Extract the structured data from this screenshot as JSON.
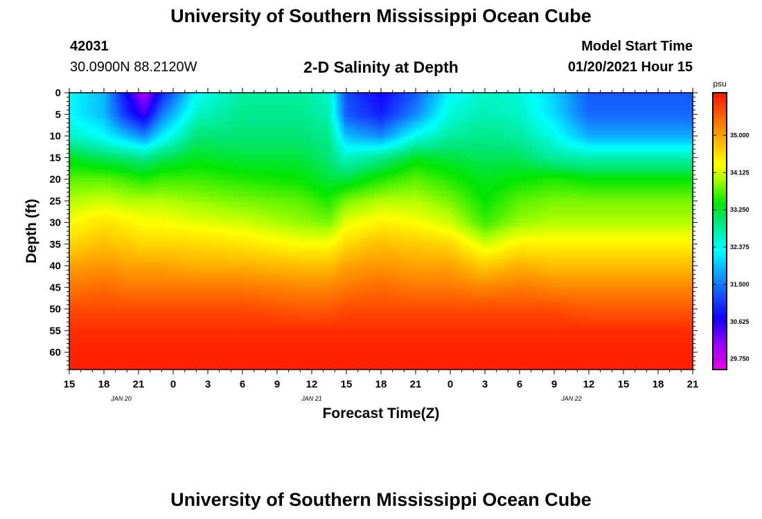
{
  "page": {
    "title_top": "University of Southern Mississippi Ocean Cube",
    "title_bottom": "University of Southern Mississippi Ocean Cube",
    "station_id": "42031",
    "station_coords": "30.0900N 88.2120W",
    "subtitle": "2-D Salinity at Depth",
    "model_label": "Model Start Time",
    "model_time": "01/20/2021 Hour 15"
  },
  "chart_data": {
    "type": "heatmap",
    "title": "2-D Salinity at Depth",
    "xlabel": "Forecast Time(Z)",
    "ylabel": "Depth (ft)",
    "x_hours": [
      0,
      3,
      6,
      9,
      12,
      15,
      18,
      21,
      24,
      27,
      30,
      33,
      36,
      39,
      42,
      45,
      48,
      51,
      54
    ],
    "x_tick_labels": [
      "15",
      "18",
      "21",
      "0",
      "3",
      "6",
      "9",
      "12",
      "15",
      "18",
      "21",
      "0",
      "3",
      "6",
      "9",
      "12",
      "15",
      "18",
      "21"
    ],
    "date_labels": [
      {
        "label": "JAN 20",
        "hour": 4.5
      },
      {
        "label": "JAN 21",
        "hour": 21
      },
      {
        "label": "JAN 22",
        "hour": 43.5
      }
    ],
    "xlim": [
      0,
      54
    ],
    "ylim": [
      0,
      64
    ],
    "y_ticks": [
      0,
      5,
      10,
      15,
      20,
      25,
      30,
      35,
      40,
      45,
      50,
      55,
      60
    ],
    "colorbar": {
      "unit": "psu",
      "min": 29.5,
      "max": 36.0,
      "tick_values": [
        29.75,
        30.625,
        31.5,
        32.375,
        33.25,
        34.125,
        35.0
      ],
      "tick_labels": [
        "29.750",
        "30.625",
        "31.500",
        "32.375",
        "33.250",
        "34.125",
        "35.000"
      ]
    },
    "depths_ft": [
      0,
      5,
      10,
      15,
      20,
      25,
      30,
      35,
      40,
      45,
      50,
      55,
      60,
      64
    ],
    "columns": [
      {
        "hour": 0,
        "salinity": [
          32.3,
          32.3,
          32.6,
          33.3,
          33.7,
          34.0,
          34.3,
          34.6,
          35.0,
          35.3,
          35.6,
          35.8,
          35.9,
          35.9
        ]
      },
      {
        "hour": 3,
        "salinity": [
          31.9,
          31.9,
          32.3,
          33.1,
          33.7,
          34.1,
          34.5,
          34.8,
          35.1,
          35.4,
          35.6,
          35.8,
          35.9,
          35.9
        ]
      },
      {
        "hour": 5,
        "salinity": [
          30.7,
          31.0,
          31.9,
          33.0,
          33.6,
          34.0,
          34.4,
          34.7,
          35.0,
          35.3,
          35.6,
          35.8,
          35.9,
          35.9
        ]
      },
      {
        "hour": 6.5,
        "salinity": [
          29.9,
          30.5,
          31.6,
          32.9,
          33.5,
          34.0,
          34.3,
          34.6,
          35.0,
          35.3,
          35.6,
          35.8,
          35.9,
          35.9
        ]
      },
      {
        "hour": 8,
        "salinity": [
          30.9,
          31.5,
          32.2,
          33.1,
          33.6,
          34.0,
          34.3,
          34.6,
          35.0,
          35.3,
          35.6,
          35.8,
          35.9,
          35.9
        ]
      },
      {
        "hour": 11,
        "salinity": [
          32.3,
          32.6,
          33.0,
          33.3,
          33.6,
          33.9,
          34.2,
          34.6,
          34.9,
          35.3,
          35.6,
          35.8,
          35.9,
          35.9
        ]
      },
      {
        "hour": 15,
        "salinity": [
          32.8,
          32.9,
          33.0,
          33.2,
          33.5,
          33.8,
          34.1,
          34.5,
          34.9,
          35.3,
          35.6,
          35.8,
          35.9,
          35.9
        ]
      },
      {
        "hour": 20,
        "salinity": [
          32.8,
          32.9,
          33.0,
          33.2,
          33.4,
          33.7,
          33.9,
          34.3,
          34.8,
          35.2,
          35.5,
          35.8,
          35.9,
          35.9
        ]
      },
      {
        "hour": 22.5,
        "salinity": [
          32.6,
          32.7,
          32.9,
          33.0,
          33.2,
          33.5,
          33.8,
          34.3,
          34.8,
          35.2,
          35.5,
          35.8,
          35.9,
          35.9
        ]
      },
      {
        "hour": 24,
        "salinity": [
          31.2,
          31.3,
          31.9,
          32.6,
          33.2,
          33.8,
          34.2,
          34.6,
          35.0,
          35.3,
          35.6,
          35.8,
          35.9,
          35.9
        ]
      },
      {
        "hour": 27,
        "salinity": [
          30.7,
          30.9,
          31.6,
          32.9,
          33.5,
          34.0,
          34.4,
          34.8,
          35.1,
          35.4,
          35.6,
          35.8,
          35.9,
          35.9
        ]
      },
      {
        "hour": 30,
        "salinity": [
          31.3,
          31.6,
          32.4,
          33.3,
          33.7,
          34.0,
          34.3,
          34.7,
          35.0,
          35.3,
          35.6,
          35.8,
          35.9,
          35.9
        ]
      },
      {
        "hour": 33,
        "salinity": [
          32.3,
          32.5,
          32.8,
          33.2,
          33.5,
          33.8,
          34.1,
          34.6,
          35.0,
          35.3,
          35.6,
          35.8,
          35.9,
          35.9
        ]
      },
      {
        "hour": 36,
        "salinity": [
          32.6,
          32.7,
          32.9,
          33.1,
          33.3,
          33.4,
          33.6,
          34.1,
          34.7,
          35.2,
          35.6,
          35.8,
          35.9,
          35.9
        ]
      },
      {
        "hour": 39,
        "salinity": [
          32.5,
          32.6,
          32.8,
          33.1,
          33.4,
          33.7,
          33.9,
          34.4,
          34.9,
          35.3,
          35.6,
          35.8,
          35.9,
          35.9
        ]
      },
      {
        "hour": 42,
        "salinity": [
          32.0,
          32.1,
          32.4,
          32.8,
          33.5,
          33.8,
          34.0,
          34.4,
          34.8,
          35.2,
          35.6,
          35.8,
          35.9,
          35.9
        ]
      },
      {
        "hour": 45,
        "salinity": [
          31.3,
          31.4,
          31.8,
          32.7,
          33.4,
          33.8,
          34.0,
          34.4,
          34.8,
          35.2,
          35.5,
          35.8,
          35.9,
          35.9
        ]
      },
      {
        "hour": 54,
        "salinity": [
          31.3,
          31.4,
          31.8,
          32.7,
          33.4,
          33.8,
          34.0,
          34.4,
          34.8,
          35.2,
          35.5,
          35.8,
          35.9,
          35.9
        ]
      }
    ]
  }
}
